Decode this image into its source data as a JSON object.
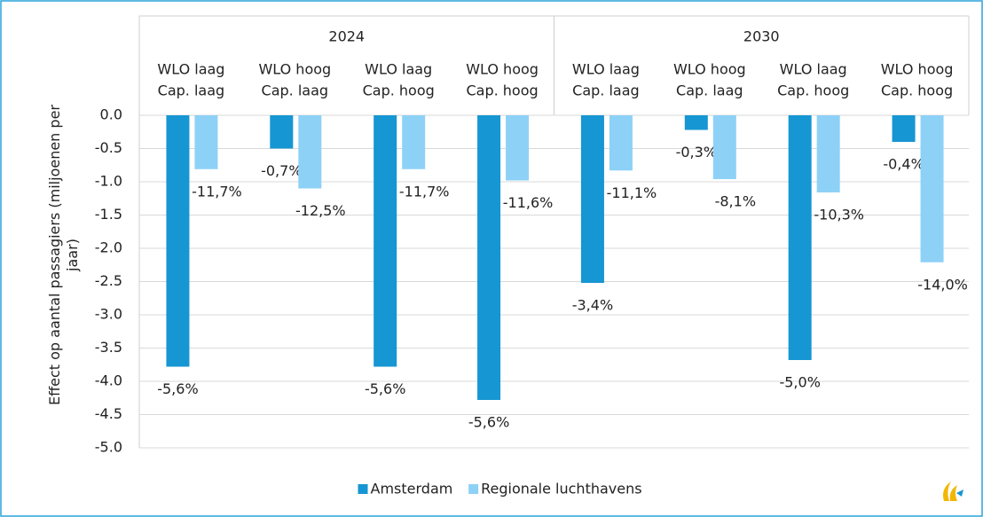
{
  "chart_data": {
    "type": "bar",
    "groups": [
      {
        "name": "2024",
        "categories": [
          [
            "WLO laag",
            "Cap. laag"
          ],
          [
            "WLO hoog",
            "Cap. laag"
          ],
          [
            "WLO laag",
            "Cap. hoog"
          ],
          [
            "WLO hoog",
            "Cap. hoog"
          ]
        ]
      },
      {
        "name": "2030",
        "categories": [
          [
            "WLO laag",
            "Cap. laag"
          ],
          [
            "WLO hoog",
            "Cap. laag"
          ],
          [
            "WLO laag",
            "Cap. hoog"
          ],
          [
            "WLO hoog",
            "Cap. hoog"
          ]
        ]
      }
    ],
    "series": [
      {
        "name": "Amsterdam",
        "color": "#1696d2",
        "values": [
          -3.78,
          -0.5,
          -3.78,
          -4.28,
          -2.52,
          -0.22,
          -3.68,
          -0.4
        ],
        "data_labels": [
          "-5,6%",
          "-0,7%",
          "-5,6%",
          "-5,6%",
          "-3,4%",
          "-0,3%",
          "-5,0%",
          "-0,4%"
        ]
      },
      {
        "name": "Regionale luchthavens",
        "color": "#8dd1f7",
        "values": [
          -0.81,
          -1.1,
          -0.81,
          -0.98,
          -0.83,
          -0.96,
          -1.16,
          -2.21
        ],
        "data_labels": [
          "-11,7%",
          "-12,5%",
          "-11,7%",
          "-11,6%",
          "-11,1%",
          "-8,1%",
          "-10,3%",
          "-14,0%"
        ]
      }
    ],
    "ylabel": [
      "Effect op aantal passagiers (miljoenen per",
      "jaar)"
    ],
    "ylim": [
      -5,
      0
    ],
    "yticks": [
      {
        "value": 0,
        "label": "0.0"
      },
      {
        "value": -0.5,
        "label": "-0.5"
      },
      {
        "value": -1,
        "label": "-1.0"
      },
      {
        "value": -1.5,
        "label": "-1.5"
      },
      {
        "value": -2,
        "label": "-2.0"
      },
      {
        "value": -2.5,
        "label": "-2.5"
      },
      {
        "value": -3,
        "label": "-3.0"
      },
      {
        "value": -3.5,
        "label": "-3.5"
      },
      {
        "value": -4,
        "label": "-4.0"
      },
      {
        "value": -4.5,
        "label": "-4.5"
      },
      {
        "value": -5,
        "label": "-5.0"
      }
    ],
    "grid": true,
    "legend": "bottom"
  }
}
